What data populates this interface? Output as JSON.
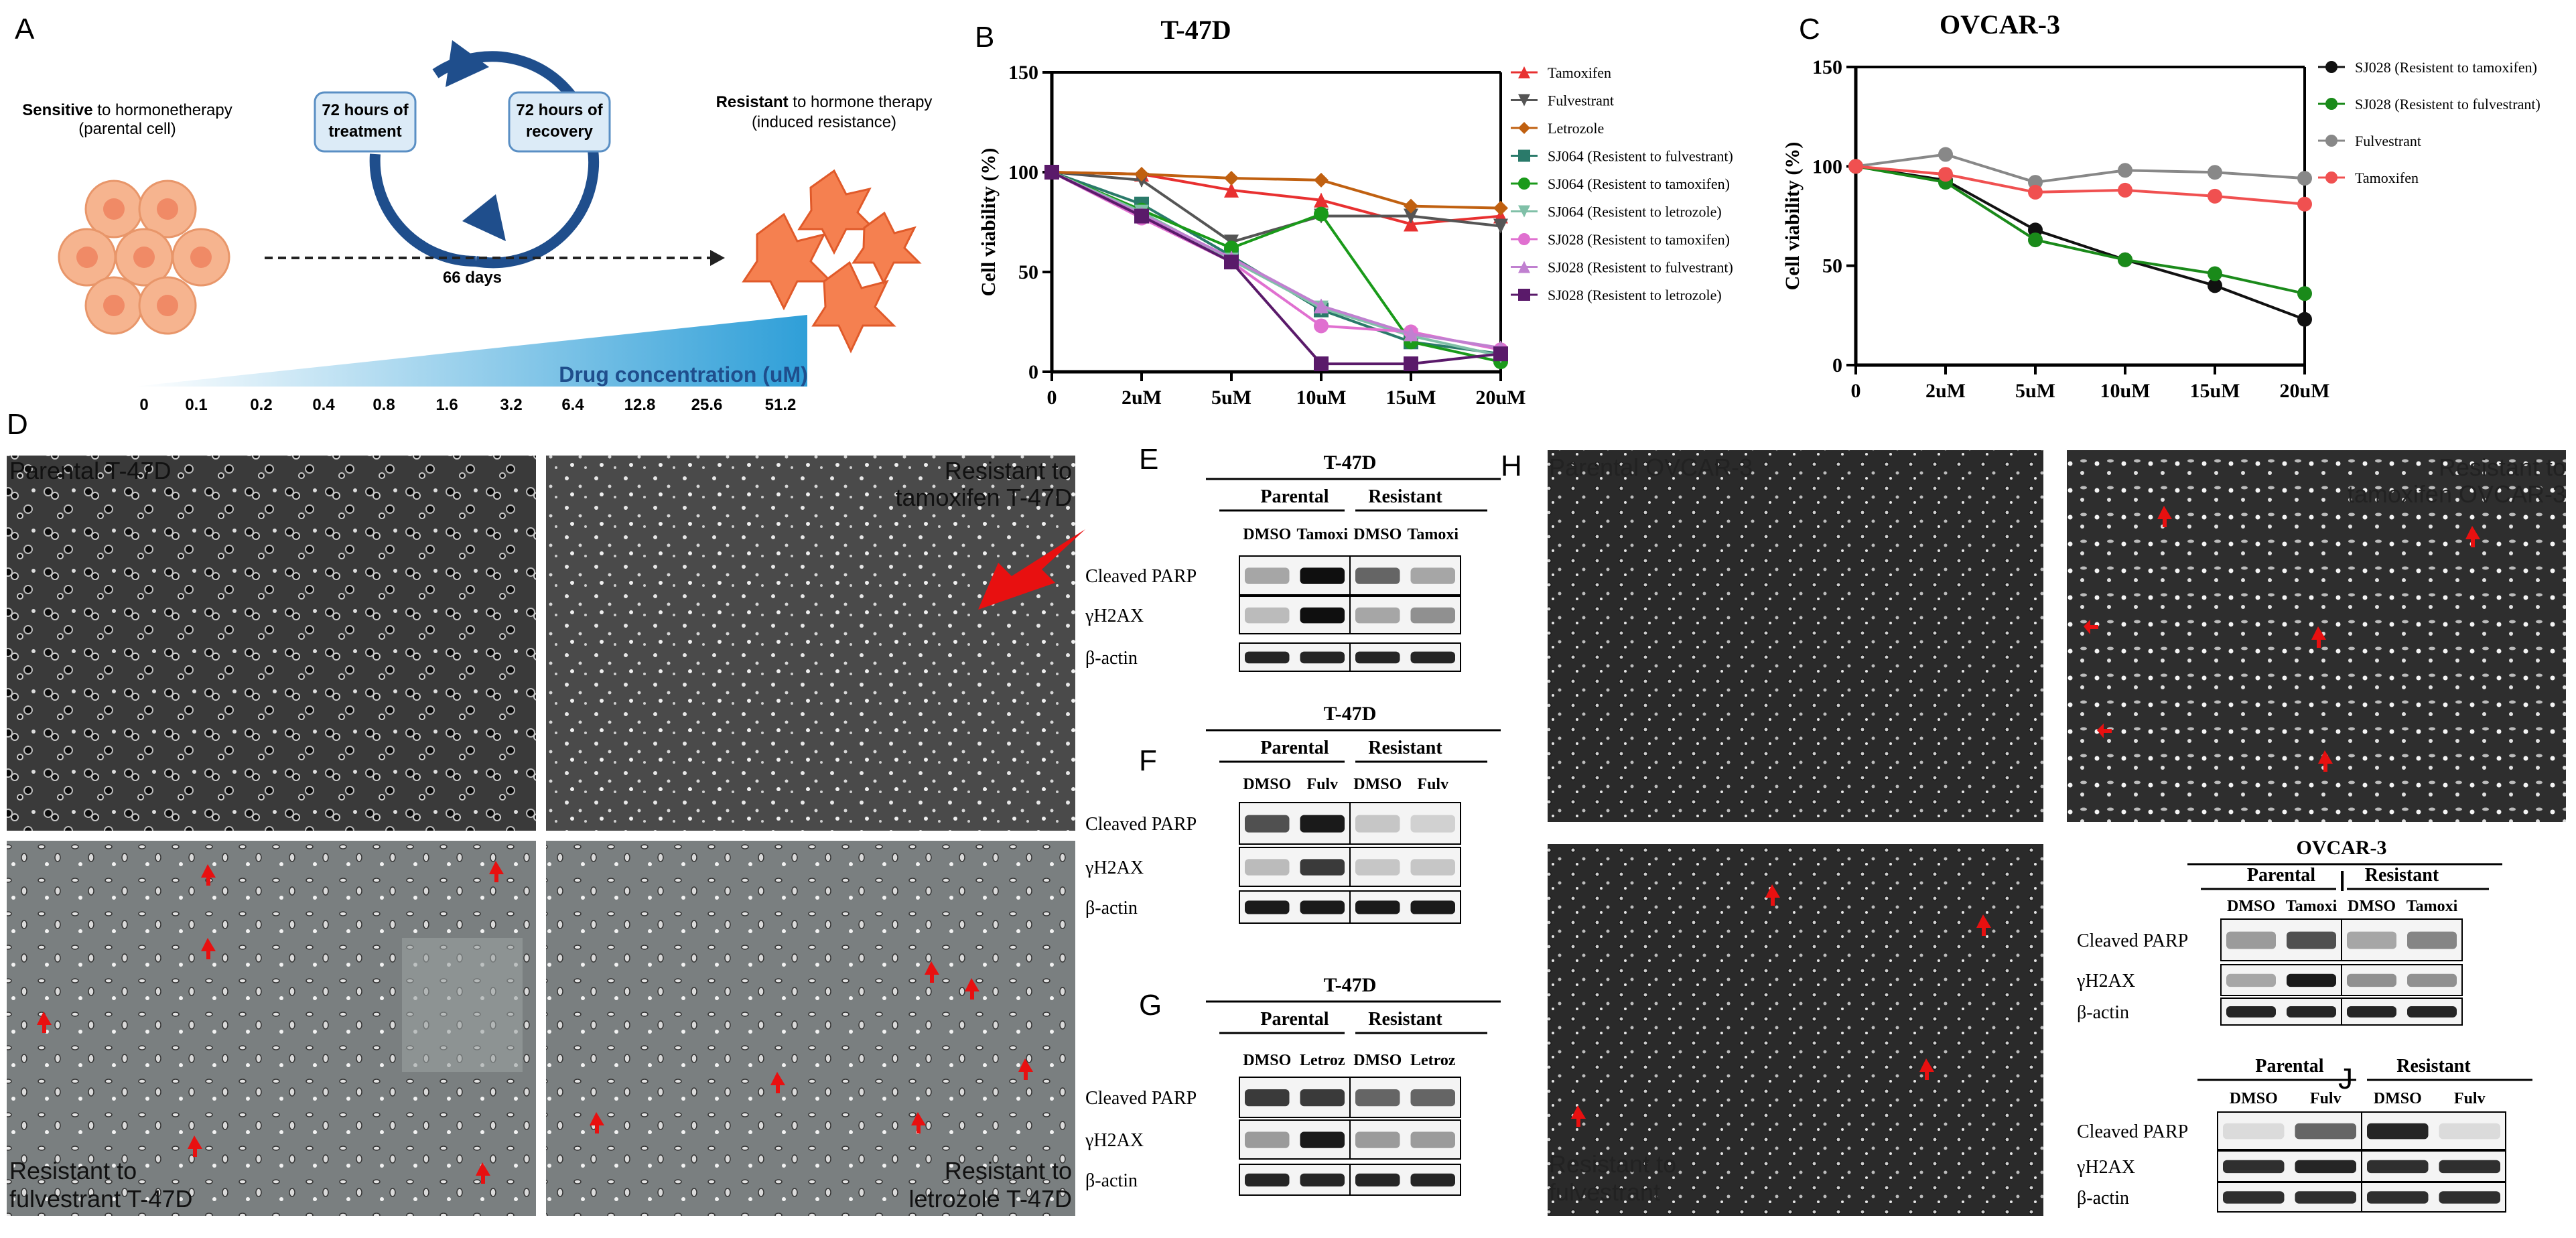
{
  "panel_letters": {
    "A": "A",
    "B": "B",
    "C": "C",
    "D": "D",
    "E": "E",
    "F": "F",
    "G": "G",
    "H": "H",
    "I": "I",
    "J": "J"
  },
  "panelA": {
    "sensitive_bold": "Sensitive",
    "sensitive_rest": " to hormonetherapy",
    "sensitive_sub": "(parental cell)",
    "resistant_bold": "Resistant",
    "resistant_rest": " to hormone therapy",
    "resistant_sub": "(induced resistance)",
    "treatment_line1": "72 hours of",
    "treatment_line2": "treatment",
    "recovery_line1": "72 hours of",
    "recovery_line2": "recovery",
    "days": "66 days",
    "drug_label": "Drug concentration (uM)",
    "concentrations": [
      "0",
      "0.1",
      "0.2",
      "0.4",
      "0.8",
      "1.6",
      "3.2",
      "6.4",
      "12.8",
      "25.6",
      "51.2"
    ],
    "colors": {
      "arrow": "#1f4e8c",
      "box": "#dcebf7",
      "cell": "#f6b48f",
      "resistant_cell": "#f07040",
      "wedge": "#3fa9dd"
    }
  },
  "chart_data": [
    {
      "type": "line",
      "title": "T-47D",
      "ylabel": "Cell viability (%)",
      "xlabel": "",
      "x": [
        "0",
        "2uM",
        "5uM",
        "10uM",
        "15uM",
        "20uM"
      ],
      "ylim": [
        0,
        150
      ],
      "yticks": [
        "0",
        "50",
        "100",
        "150"
      ],
      "legend_position": "right",
      "series": [
        {
          "name": "Tamoxifen",
          "color": "#e83030",
          "marker": "triangle-up",
          "values": [
            100,
            99,
            91,
            86,
            74,
            78
          ]
        },
        {
          "name": "Fulvestrant",
          "color": "#555555",
          "marker": "triangle-down",
          "values": [
            100,
            96,
            65,
            78,
            78,
            73
          ]
        },
        {
          "name": "Letrozole",
          "color": "#c06010",
          "marker": "diamond",
          "values": [
            100,
            99,
            97,
            96,
            83,
            82
          ]
        },
        {
          "name": "SJ064  (Resistent to fulvestrant)",
          "color": "#2a7a6a",
          "marker": "square",
          "values": [
            100,
            84,
            58,
            31,
            15,
            9
          ]
        },
        {
          "name": "SJ064  (Resistent to tamoxifen)",
          "color": "#1a9a1a",
          "marker": "circle",
          "values": [
            100,
            81,
            62,
            79,
            15,
            5
          ]
        },
        {
          "name": "SJ064  (Resistent to letrozole)",
          "color": "#80c0a8",
          "marker": "triangle-down",
          "values": [
            100,
            80,
            56,
            32,
            18,
            8
          ]
        },
        {
          "name": "SJ028  (Resistent to tamoxifen)",
          "color": "#e070d0",
          "marker": "circle",
          "values": [
            100,
            77,
            55,
            23,
            20,
            11
          ]
        },
        {
          "name": "SJ028  (Resistent to fulvestrant)",
          "color": "#c080d0",
          "marker": "triangle-up",
          "values": [
            100,
            79,
            57,
            33,
            19,
            12
          ]
        },
        {
          "name": "SJ028  (Resistent to letrozole)",
          "color": "#5a1a6a",
          "marker": "square",
          "values": [
            100,
            78,
            55,
            4,
            4,
            9
          ]
        }
      ]
    },
    {
      "type": "line",
      "title": "OVCAR-3",
      "ylabel": "Cell viability (%)",
      "xlabel": "",
      "x": [
        "0",
        "2uM",
        "5uM",
        "10uM",
        "15uM",
        "20uM"
      ],
      "ylim": [
        0,
        150
      ],
      "yticks": [
        "0",
        "50",
        "100",
        "150"
      ],
      "legend_position": "right",
      "series": [
        {
          "name": "SJ028 (Resistent to tamoxifen)",
          "color": "#111111",
          "marker": "circle",
          "values": [
            100,
            93,
            68,
            53,
            40,
            23
          ]
        },
        {
          "name": "SJ028 (Resistent to fulvestrant)",
          "color": "#1a8a1a",
          "marker": "circle",
          "values": [
            100,
            92,
            63,
            53,
            46,
            36
          ]
        },
        {
          "name": "Fulvestrant",
          "color": "#888888",
          "marker": "circle",
          "values": [
            100,
            106,
            92,
            98,
            97,
            94
          ]
        },
        {
          "name": "Tamoxifen",
          "color": "#f05050",
          "marker": "circle",
          "values": [
            100,
            96,
            87,
            88,
            85,
            81
          ]
        }
      ]
    }
  ],
  "panelD": {
    "tl": "Parental T-47D",
    "tr_1": "Resistant to",
    "tr_2": "tamoxifen T-47D",
    "bl_1": "Resistant to",
    "bl_2": "fulvestrant T-47D",
    "br_1": "Resistant to",
    "br_2": "letrozole T-47D"
  },
  "panelH": {
    "tl": "Parental OVCAR-3",
    "tr_1": "Resistant to",
    "tr_2": "tamoxifen OVCAR-3",
    "bl_1": "Resistant to",
    "bl_2": "fulvestrant"
  },
  "blots": {
    "E": {
      "title": "T-47D",
      "group1": "Parental",
      "group2": "Resistant",
      "lanes": [
        "DMSO",
        "Tamoxi",
        "DMSO",
        "Tamoxi"
      ],
      "rows": [
        "Cleaved PARP",
        "γH2AX",
        "β-actin"
      ]
    },
    "F": {
      "title": "T-47D",
      "group1": "Parental",
      "group2": "Resistant",
      "lanes": [
        "DMSO",
        "Fulv",
        "DMSO",
        "Fulv"
      ],
      "rows": [
        "Cleaved PARP",
        "γH2AX",
        "β-actin"
      ]
    },
    "G": {
      "title": "T-47D",
      "group1": "Parental",
      "group2": "Resistant",
      "lanes": [
        "DMSO",
        "Letroz",
        "DMSO",
        "Letroz"
      ],
      "rows": [
        "Cleaved PARP",
        "γH2AX",
        "β-actin"
      ]
    },
    "I": {
      "title": "OVCAR-3",
      "group1": "Parental",
      "group2": "Resistant",
      "lanes": [
        "DMSO",
        "Tamoxi",
        "DMSO",
        "Tamoxi"
      ],
      "rows": [
        "Cleaved PARP",
        "γH2AX",
        "β-actin"
      ]
    },
    "J": {
      "title": "",
      "group1": "Parental",
      "group2": "Resistant",
      "lanes": [
        "DMSO",
        "Fulv",
        "DMSO",
        "Fulv"
      ],
      "rows": [
        "Cleaved PARP",
        "γH2AX",
        "β-actin"
      ]
    }
  }
}
